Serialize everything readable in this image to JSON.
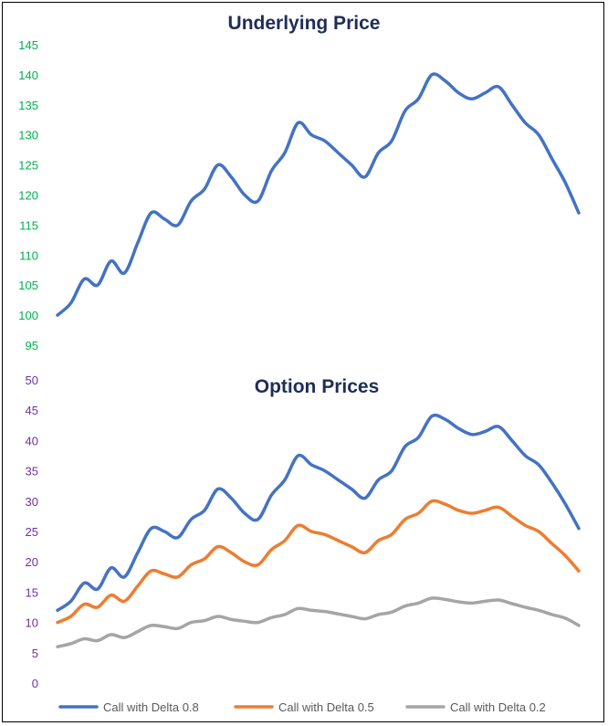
{
  "chart_data": [
    {
      "type": "line",
      "title": "Underlying Price",
      "xlabel": "",
      "ylabel": "",
      "ylim": [
        95,
        145
      ],
      "yticks": [
        95,
        100,
        105,
        110,
        115,
        120,
        125,
        130,
        135,
        140,
        145
      ],
      "tick_color": "#00b050",
      "grid": false,
      "series": [
        {
          "color": "#4472c4",
          "values": [
            100,
            102,
            106,
            105,
            109,
            107,
            112,
            117,
            116,
            115,
            119,
            121,
            125,
            123,
            120,
            119,
            124,
            127,
            132,
            130,
            129,
            127,
            125,
            123,
            127,
            129,
            134,
            136,
            140,
            139,
            137,
            136,
            137,
            138,
            135,
            132,
            130,
            126,
            122,
            117
          ]
        }
      ]
    },
    {
      "type": "line",
      "title": "Option Prices",
      "xlabel": "",
      "ylabel": "",
      "ylim": [
        0,
        50
      ],
      "yticks": [
        0,
        5,
        10,
        15,
        20,
        25,
        30,
        35,
        40,
        45,
        50
      ],
      "tick_color": "#7030a0",
      "grid": false,
      "legend_position": "bottom",
      "series": [
        {
          "name": "Call with Delta 0.8",
          "color": "#4472c4",
          "values": [
            12,
            13.5,
            16.5,
            15.5,
            19,
            17.5,
            21.5,
            25.5,
            25,
            24,
            27,
            28.5,
            32,
            30.5,
            28,
            27,
            31,
            33.5,
            37.5,
            36,
            35,
            33.5,
            32,
            30.5,
            33.5,
            35,
            39,
            40.5,
            44,
            43.5,
            42,
            41,
            41.5,
            42.3,
            40,
            37.5,
            36,
            33,
            29.5,
            25.5
          ]
        },
        {
          "name": "Call with Delta 0.5",
          "color": "#ed7d31",
          "values": [
            10,
            11,
            13,
            12.5,
            14.5,
            13.5,
            16,
            18.5,
            18,
            17.5,
            19.5,
            20.5,
            22.5,
            21.5,
            20,
            19.5,
            22,
            23.5,
            26,
            25,
            24.5,
            23.5,
            22.5,
            21.5,
            23.5,
            24.5,
            27,
            28,
            30,
            29.5,
            28.5,
            28,
            28.5,
            29,
            27.5,
            26,
            25,
            23,
            21,
            18.5
          ]
        },
        {
          "name": "Call with Delta 0.2",
          "color": "#a5a5a5",
          "values": [
            6,
            6.5,
            7.3,
            7,
            8,
            7.5,
            8.5,
            9.5,
            9.3,
            9,
            10,
            10.3,
            11,
            10.5,
            10.2,
            10,
            10.8,
            11.3,
            12.3,
            12,
            11.8,
            11.4,
            11,
            10.6,
            11.3,
            11.7,
            12.7,
            13.2,
            14,
            13.8,
            13.4,
            13.2,
            13.5,
            13.7,
            13.1,
            12.5,
            12,
            11.3,
            10.7,
            9.5
          ]
        }
      ]
    }
  ]
}
